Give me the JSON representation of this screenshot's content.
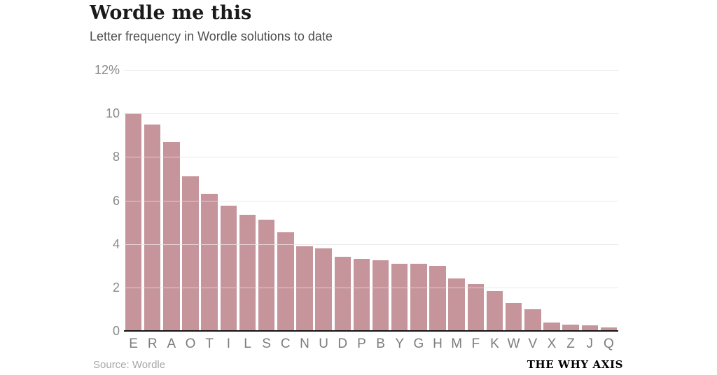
{
  "header": {
    "title": "Wordle me this",
    "subtitle": "Letter frequency in Wordle solutions to date"
  },
  "footer": {
    "source": "Source: Wordle",
    "brand": "THE WHY AXIS"
  },
  "colors": {
    "bar": "#c6959c",
    "gridline": "#d6d6d6",
    "gridline_over_bar": "rgba(255,255,255,0.5)",
    "baseline": "#151515",
    "y_label": "#8a8a8a",
    "x_label": "#7d7d7d",
    "title": "#1a1a1a",
    "subtitle": "#4e4e4e",
    "source": "#a8a8a8",
    "brand": "#000000"
  },
  "chart_data": {
    "type": "bar",
    "title": "Wordle me this",
    "subtitle": "Letter frequency in Wordle solutions to date",
    "categories": [
      "E",
      "R",
      "A",
      "O",
      "T",
      "I",
      "L",
      "S",
      "C",
      "N",
      "U",
      "D",
      "P",
      "B",
      "Y",
      "G",
      "H",
      "M",
      "F",
      "K",
      "W",
      "V",
      "X",
      "Z",
      "J",
      "Q"
    ],
    "values": [
      10.0,
      9.5,
      8.7,
      7.1,
      6.3,
      5.75,
      5.35,
      5.1,
      4.55,
      3.9,
      3.8,
      3.4,
      3.3,
      3.25,
      3.1,
      3.1,
      3.0,
      2.4,
      2.15,
      1.85,
      1.3,
      1.0,
      0.4,
      0.3,
      0.25,
      0.15
    ],
    "unit": "%",
    "xlabel": "",
    "ylabel": "",
    "ylim": [
      0,
      12
    ],
    "yticks": [
      0,
      2,
      4,
      6,
      8,
      10,
      12
    ],
    "ytick_labels": [
      "0",
      "2",
      "4",
      "6",
      "8",
      "10",
      "12%"
    ],
    "grid": true,
    "legend": false,
    "bar_order": "descending",
    "source": "Source: Wordle"
  }
}
